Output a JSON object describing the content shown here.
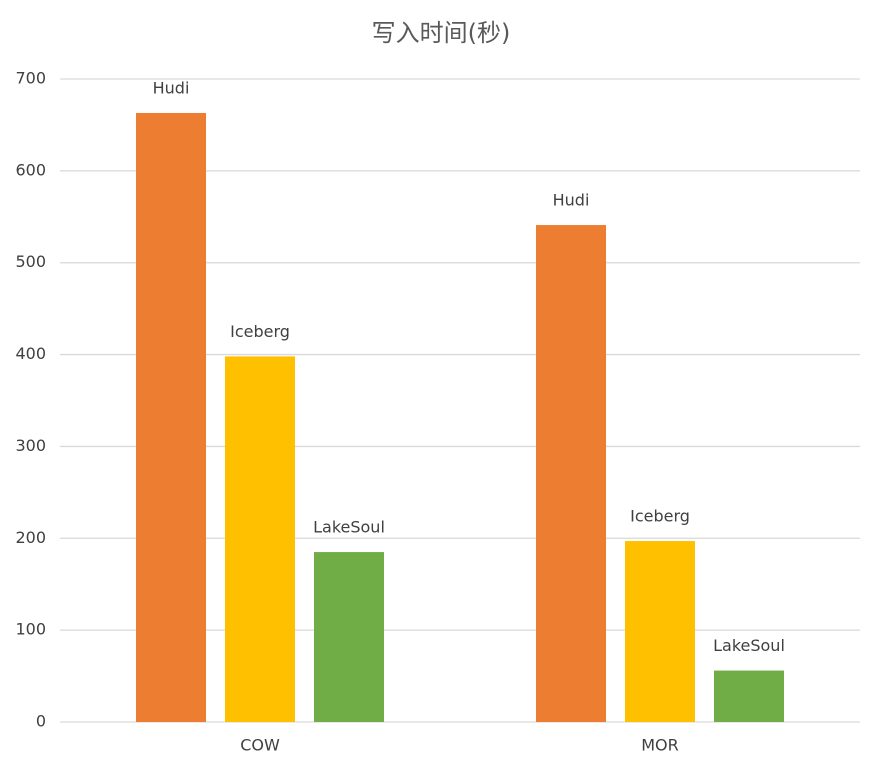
{
  "chart_data": {
    "type": "bar",
    "title": "写入时间(秒)",
    "categories": [
      "COW",
      "MOR"
    ],
    "series": [
      {
        "name": "Hudi",
        "color": "#ed7d31",
        "values": [
          663,
          541
        ]
      },
      {
        "name": "Iceberg",
        "color": "#ffc000",
        "values": [
          398,
          197
        ]
      },
      {
        "name": "LakeSoul",
        "color": "#70ad47",
        "values": [
          185,
          56
        ]
      }
    ],
    "ylim": [
      0,
      700
    ],
    "yticks": [
      0,
      100,
      200,
      300,
      400,
      500,
      600,
      700
    ],
    "grid": true
  }
}
